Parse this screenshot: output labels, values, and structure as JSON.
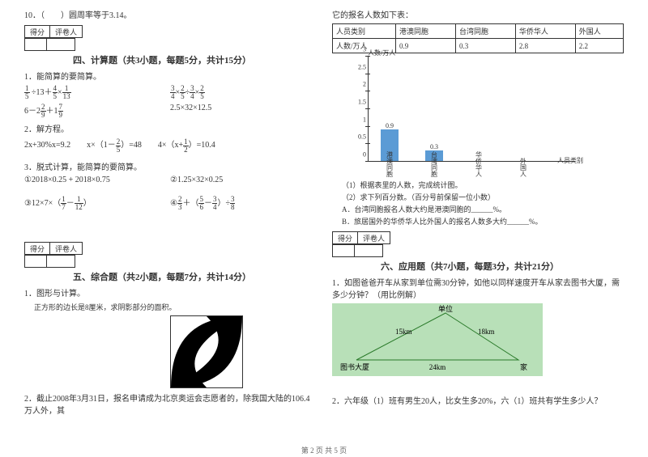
{
  "left": {
    "q10": "10．（　　）圆周率等于3.14。",
    "score_labels": [
      "得分",
      "评卷人"
    ],
    "sec4_title": "四、计算题（共3小题，每题5分，共计15分）",
    "q1_label": "1．能简算的要简算。",
    "q2_label": "2．解方程。",
    "q2_eqs": [
      "2x+30%x=9.2",
      "x×（1－",
      "）=48",
      "4×（x+",
      "）=10.4"
    ],
    "q3_label": "3．脱式计算，能简算的要简算。",
    "q3_items": [
      "①2018×0.25 + 2018×0.75",
      "②1.25×32×0.25"
    ],
    "sec5_title": "五、综合题（共2小题，每题7分，共计14分）",
    "q5_1": "1．图形与计算。",
    "q5_1_sub": "正方形的边长是8厘米，求阴影部分的面积。",
    "q5_2": "2．截止2008年3月31日，报名申请成为北京奥运会志愿者的，除我国大陆的106.4万人外，其"
  },
  "right": {
    "top_text": "它的报名人数如下表：",
    "table": {
      "headers": [
        "人员类别",
        "港澳同胞",
        "台湾同胞",
        "华侨华人",
        "外国人"
      ],
      "row_label": "人数/万人",
      "values": [
        "0.9",
        "0.3",
        "2.8",
        "2.2"
      ]
    },
    "chart": {
      "y_title": "人数/万人",
      "x_title": "人员类别",
      "y_max": 3,
      "y_step": 0.5,
      "y_ticks": [
        "0",
        "0.5",
        "1",
        "1.5",
        "2",
        "2.5",
        "3"
      ],
      "categories": [
        "港澳同胞",
        "台湾同胞",
        "华侨华人",
        "外国人"
      ],
      "values": [
        0.9,
        0.3,
        null,
        null
      ],
      "bar_color": "#5b9bd5",
      "shown_labels": [
        "0.9",
        "0.3"
      ]
    },
    "chart_q1": "（1）根据表里的人数，完成统计图。",
    "chart_q2": "（2）求下列百分数。（百分号前保留一位小数）",
    "chart_qa": "A．台湾同胞报名人数大约是港澳同胞的______%。",
    "chart_qb": "B．旅居国外的华侨华人比外国人的报名人数多大约______%。",
    "score_labels": [
      "得分",
      "评卷人"
    ],
    "sec6_title": "六、应用题（共7小题，每题3分，共计21分）",
    "q6_1": "1．如图爸爸开车从家到单位需30分钟，如他以同样速度开车从家去图书大厦，需多少分钟？（用比例解）",
    "triangle": {
      "top": "单位",
      "left_side": "15km",
      "right_side": "18km",
      "bottom_left": "图书大厦",
      "bottom_right": "家",
      "base": "24km",
      "bg": "#b8e0b8",
      "line": "#2a7a2a"
    },
    "q6_2": "2．六年级（1）班有男生20人，比女生多20%，六（1）班共有学生多少人？"
  },
  "footer": "第 2 页 共 5 页"
}
